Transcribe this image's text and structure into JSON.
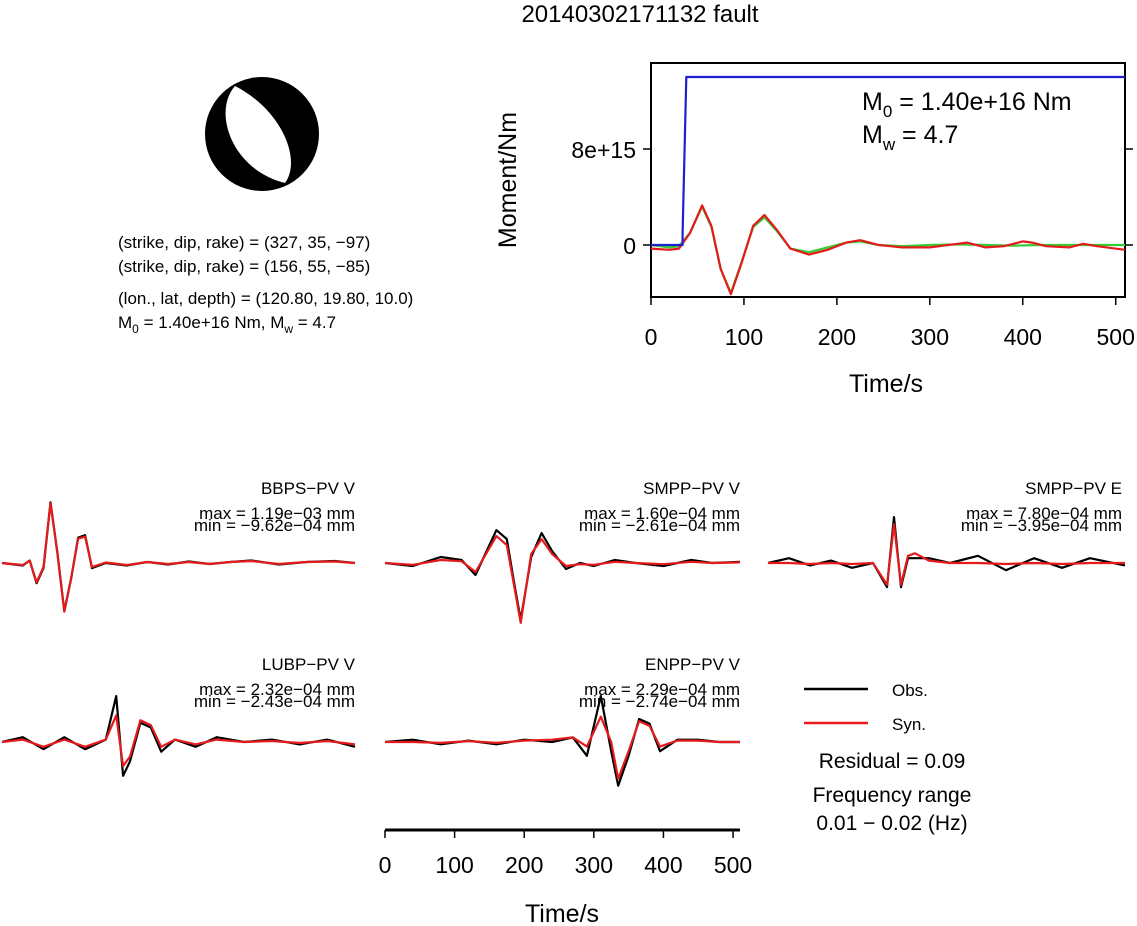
{
  "title": "20140302171132 fault",
  "info": {
    "line1": "(strike, dip, rake) = (327, 35, −97)",
    "line2": "(strike, dip, rake) = (156, 55, −85)",
    "line3": "(lon., lat, depth) = (120.80, 19.80, 10.0)",
    "line4_m0_prefix": "M",
    "line4_m0_sub": "0",
    "line4_m0_rest": " = 1.40e+16 Nm, M",
    "line4_mw_sub": "w",
    "line4_mw_rest": " = 4.7"
  },
  "moment_plot": {
    "ylabel": "Moment/Nm",
    "xlabel": "Time/s",
    "m0_prefix": "M",
    "m0_sub": "0",
    "m0_rest": " = 1.40e+16 Nm",
    "mw_prefix": "M",
    "mw_sub": "w",
    "mw_rest": " = 4.7",
    "yticks": [
      "0",
      "8e+15"
    ],
    "xticks": [
      "0",
      "100",
      "200",
      "300",
      "400",
      "500"
    ]
  },
  "waveform_axis": {
    "xlabel": "Time/s",
    "xticks": [
      "0",
      "100",
      "200",
      "300",
      "400",
      "500"
    ]
  },
  "legend": {
    "obs": "Obs.",
    "syn": "Syn.",
    "residual": "Residual = 0.09",
    "freq_label": "Frequency range",
    "freq_value": "0.01 − 0.02 (Hz)"
  },
  "stations": [
    {
      "name": "BBPS−PV V",
      "max": "max = 1.19e−03 mm",
      "min": "min = −9.62e−04 mm"
    },
    {
      "name": "SMPP−PV V",
      "max": "max = 1.60e−04 mm",
      "min": "min = −2.61e−04 mm"
    },
    {
      "name": "SMPP−PV E",
      "max": "max = 7.80e−04 mm",
      "min": "min = −3.95e−04 mm"
    },
    {
      "name": "LUBP−PV V",
      "max": "max = 2.32e−04 mm",
      "min": "min = −2.43e−04 mm"
    },
    {
      "name": "ENPP−PV V",
      "max": "max = 2.29e−04 mm",
      "min": "min = −2.74e−04 mm"
    }
  ],
  "colors": {
    "observed": "#000000",
    "synthetic": "#e41a1c",
    "moment": "#1f1fd1",
    "stf_green": "#33cc33",
    "beachball_fill": "#000000"
  },
  "chart_data": [
    {
      "type": "line",
      "title": "",
      "xlabel": "Time/s",
      "ylabel": "Moment/Nm",
      "xlim": [
        0,
        510
      ],
      "ylim": [
        -4400000000000000.0,
        1.5e+16
      ],
      "series": [
        {
          "color": "blue",
          "x": [
            0,
            34,
            34,
            38,
            38,
            510
          ],
          "y": [
            0,
            0,
            1000000000000000.0,
            1.4e+16,
            1.4e+16,
            1.4e+16
          ]
        },
        {
          "color": "green",
          "x": [
            0,
            20,
            30,
            42,
            55,
            65,
            75,
            86,
            97,
            110,
            122,
            135,
            150,
            170,
            190,
            210,
            225,
            245,
            270,
            300,
            330,
            360,
            390,
            420,
            450,
            480,
            510
          ],
          "y": [
            0,
            -200000000000000.0,
            -100000000000000.0,
            1000000000000000.0,
            3200000000000000.0,
            1500000000000000.0,
            -2000000000000000.0,
            -4000000000000000.0,
            -1500000000000000.0,
            1500000000000000.0,
            2300000000000000.0,
            1200000000000000.0,
            -300000000000000.0,
            -600000000000000.0,
            -200000000000000.0,
            200000000000000.0,
            300000000000000.0,
            0,
            -100000000000000.0,
            0,
            50000000000000.0,
            0,
            -50000000000000.0,
            0,
            0,
            0,
            0
          ]
        },
        {
          "color": "red",
          "x": [
            0,
            20,
            30,
            42,
            55,
            65,
            75,
            86,
            97,
            110,
            122,
            135,
            150,
            170,
            190,
            210,
            225,
            245,
            270,
            300,
            330,
            340,
            360,
            380,
            400,
            410,
            425,
            450,
            465,
            480,
            510
          ],
          "y": [
            -300000000000000.0,
            -400000000000000.0,
            -300000000000000.0,
            1000000000000000.0,
            3300000000000000.0,
            1600000000000000.0,
            -2000000000000000.0,
            -4100000000000000.0,
            -1600000000000000.0,
            1600000000000000.0,
            2500000000000000.0,
            1300000000000000.0,
            -300000000000000.0,
            -800000000000000.0,
            -400000000000000.0,
            200000000000000.0,
            400000000000000.0,
            0,
            -200000000000000.0,
            -200000000000000.0,
            100000000000000.0,
            200000000000000.0,
            -200000000000000.0,
            -100000000000000.0,
            300000000000000.0,
            200000000000000.0,
            -100000000000000.0,
            -200000000000000.0,
            100000000000000.0,
            -100000000000000.0,
            -400000000000000.0
          ]
        }
      ]
    },
    {
      "type": "line",
      "title": "BBPS−PV V",
      "xlim": [
        0,
        510
      ],
      "series": [
        {
          "name": "Obs.",
          "x": [
            0,
            30,
            40,
            50,
            60,
            70,
            80,
            90,
            100,
            110,
            120,
            130,
            150,
            180,
            210,
            240,
            270,
            300,
            330,
            360,
            400,
            440,
            480,
            510
          ],
          "y": [
            0,
            -0.05,
            0.05,
            -0.4,
            -0.1,
            1.2,
            0.2,
            -0.95,
            -0.3,
            0.5,
            0.55,
            -0.1,
            0,
            -0.05,
            0.02,
            -0.03,
            0.03,
            -0.02,
            0.02,
            0.05,
            -0.03,
            0.02,
            0.04,
            0
          ]
        },
        {
          "name": "Syn.",
          "x": [
            0,
            30,
            40,
            50,
            60,
            70,
            80,
            90,
            100,
            110,
            120,
            130,
            150,
            180,
            210,
            240,
            270,
            300,
            330,
            360,
            400,
            440,
            480,
            510
          ],
          "y": [
            0,
            -0.04,
            0.05,
            -0.38,
            -0.08,
            1.18,
            0.2,
            -0.96,
            -0.3,
            0.48,
            0.52,
            -0.08,
            0.01,
            -0.04,
            0.02,
            -0.02,
            0.02,
            -0.02,
            0.02,
            0.04,
            -0.02,
            0.02,
            0.03,
            0
          ]
        }
      ]
    },
    {
      "type": "line",
      "title": "SMPP−PV V",
      "xlim": [
        0,
        510
      ],
      "series": [
        {
          "name": "Obs.",
          "x": [
            0,
            40,
            80,
            110,
            130,
            160,
            175,
            185,
            195,
            210,
            225,
            240,
            260,
            280,
            300,
            330,
            360,
            400,
            440,
            470,
            510
          ],
          "y": [
            0,
            -0.05,
            0.1,
            0.05,
            -0.2,
            0.55,
            0.4,
            -0.3,
            -0.95,
            0.1,
            0.5,
            0.2,
            -0.1,
            0.0,
            -0.05,
            0.05,
            0.0,
            -0.05,
            0.05,
            0.0,
            0.02
          ]
        },
        {
          "name": "Syn.",
          "x": [
            0,
            40,
            80,
            110,
            130,
            160,
            175,
            185,
            195,
            210,
            225,
            240,
            260,
            280,
            300,
            330,
            360,
            400,
            440,
            470,
            510
          ],
          "y": [
            0,
            -0.03,
            0.05,
            0.03,
            -0.15,
            0.45,
            0.3,
            -0.35,
            -1.0,
            0.15,
            0.4,
            0.15,
            -0.05,
            -0.02,
            -0.03,
            0.02,
            0.0,
            -0.02,
            0.02,
            0.0,
            0.01
          ]
        }
      ]
    },
    {
      "type": "line",
      "title": "SMPP−PV E",
      "xlim": [
        0,
        510
      ],
      "series": [
        {
          "name": "Obs.",
          "x": [
            0,
            30,
            60,
            90,
            120,
            150,
            170,
            180,
            190,
            200,
            210,
            230,
            260,
            300,
            340,
            380,
            420,
            460,
            510
          ],
          "y": [
            0,
            0.1,
            -0.05,
            0.05,
            -0.1,
            0.0,
            -0.5,
            0.95,
            -0.5,
            0.1,
            0.1,
            0.1,
            0.0,
            0.15,
            -0.15,
            0.1,
            -0.1,
            0.1,
            -0.05
          ]
        },
        {
          "name": "Syn.",
          "x": [
            0,
            30,
            60,
            90,
            120,
            150,
            170,
            180,
            190,
            200,
            210,
            230,
            260,
            300,
            340,
            380,
            420,
            460,
            510
          ],
          "y": [
            0,
            0.0,
            -0.02,
            0.0,
            -0.02,
            0.0,
            -0.45,
            0.8,
            -0.45,
            0.15,
            0.2,
            0.05,
            0.0,
            0.0,
            -0.02,
            0.0,
            -0.02,
            0.0,
            0.0
          ]
        }
      ]
    },
    {
      "type": "line",
      "title": "LUBP−PV V",
      "xlim": [
        0,
        510
      ],
      "series": [
        {
          "name": "Obs.",
          "x": [
            0,
            30,
            60,
            90,
            120,
            150,
            165,
            175,
            185,
            200,
            215,
            230,
            250,
            280,
            310,
            350,
            390,
            430,
            470,
            510
          ],
          "y": [
            0,
            0.1,
            -0.15,
            0.1,
            -0.15,
            0.05,
            0.95,
            -0.7,
            -0.4,
            0.4,
            0.3,
            -0.2,
            0.05,
            -0.1,
            0.1,
            0.0,
            0.05,
            -0.05,
            0.05,
            -0.1
          ]
        },
        {
          "name": "Syn.",
          "x": [
            0,
            30,
            60,
            90,
            120,
            150,
            165,
            175,
            185,
            200,
            215,
            230,
            250,
            280,
            310,
            350,
            390,
            430,
            470,
            510
          ],
          "y": [
            0,
            0.05,
            -0.1,
            0.05,
            -0.1,
            0.05,
            0.55,
            -0.5,
            -0.3,
            0.45,
            0.35,
            -0.1,
            0.05,
            -0.05,
            0.05,
            0.0,
            0.02,
            -0.02,
            0.02,
            -0.05
          ]
        }
      ]
    },
    {
      "type": "line",
      "title": "ENPP−PV V",
      "xlim": [
        0,
        510
      ],
      "series": [
        {
          "name": "Obs.",
          "x": [
            0,
            40,
            80,
            120,
            160,
            200,
            240,
            270,
            290,
            310,
            325,
            335,
            350,
            365,
            380,
            395,
            420,
            450,
            480,
            510
          ],
          "y": [
            0,
            0.05,
            -0.05,
            0.03,
            -0.05,
            0.05,
            0.0,
            0.1,
            -0.3,
            1.0,
            -0.2,
            -0.95,
            -0.3,
            0.5,
            0.4,
            -0.2,
            0.05,
            0.05,
            0.0,
            0.0
          ]
        },
        {
          "name": "Syn.",
          "x": [
            0,
            40,
            80,
            120,
            160,
            200,
            240,
            270,
            290,
            310,
            325,
            335,
            350,
            365,
            380,
            395,
            420,
            450,
            480,
            510
          ],
          "y": [
            0,
            0.0,
            -0.02,
            0.02,
            -0.02,
            0.03,
            0.05,
            0.1,
            -0.1,
            0.55,
            0.0,
            -0.8,
            -0.2,
            0.45,
            0.35,
            -0.1,
            0.03,
            0.03,
            0.0,
            0.0
          ]
        }
      ]
    }
  ]
}
